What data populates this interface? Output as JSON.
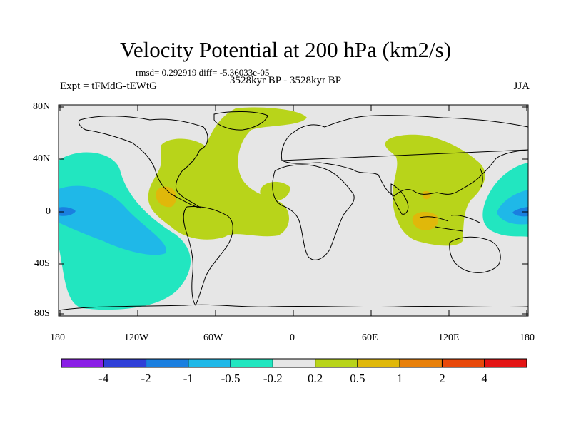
{
  "header": {
    "title": "Velocity Potential at 200 hPa (km2/s)",
    "stats": "rmsd= 0.292919 diff= -5.36033e-05",
    "experiment": "Expt = tFMdG-tEWtG",
    "period": "3528kyr BP - 3528kyr BP",
    "season": "JJA"
  },
  "axes": {
    "lat_ticks": [
      "80N",
      "40N",
      "0",
      "40S",
      "80S"
    ],
    "lon_ticks": [
      "180",
      "120W",
      "60W",
      "0",
      "60E",
      "120E",
      "180"
    ]
  },
  "colorbar": {
    "colors": [
      "#8a1ee6",
      "#2f3fd8",
      "#1a7fe0",
      "#1fb8e8",
      "#22e6c0",
      "#e6e6e6",
      "#b8d41a",
      "#e0b80a",
      "#e8800a",
      "#e8480a",
      "#e41414"
    ],
    "labels": [
      "-4",
      "-2",
      "-1",
      "-0.5",
      "-0.2",
      "0.2",
      "0.5",
      "1",
      "2",
      "4"
    ]
  },
  "colors": {
    "background": "#e6e6e6",
    "neg_weak": "#22e6c0",
    "neg_mid": "#1fb8e8",
    "neg_strong": "#1a7fe0",
    "pos_weak": "#b8d41a",
    "pos_mid": "#e0b80a"
  }
}
